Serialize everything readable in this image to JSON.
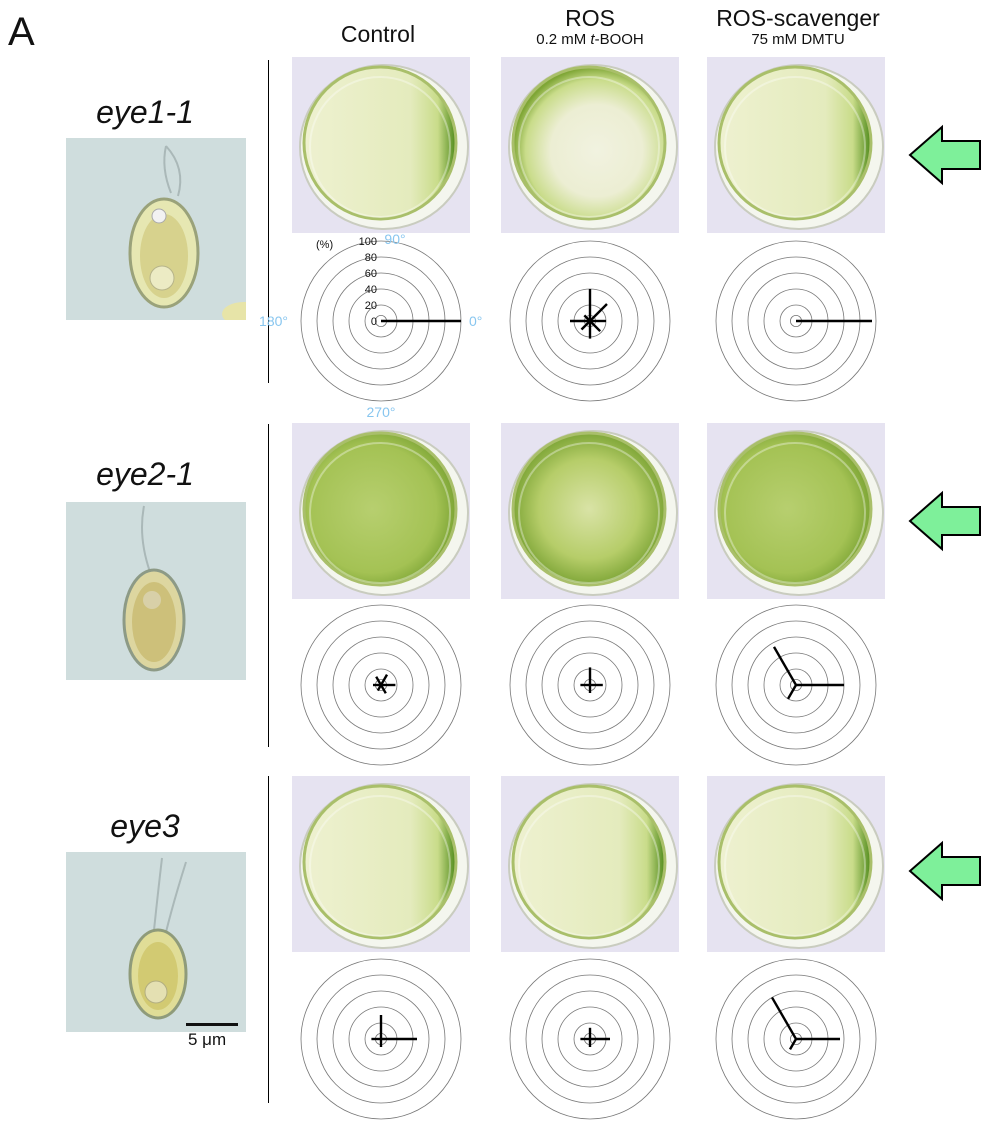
{
  "panel_label": "A",
  "columns": [
    {
      "title": "Control",
      "subtitle_pre": "",
      "subtitle_italic": "",
      "subtitle_post": ""
    },
    {
      "title": "ROS",
      "subtitle_pre": "0.2 mM ",
      "subtitle_italic": "t",
      "subtitle_post": "-BOOH"
    },
    {
      "title": "ROS-scavenger",
      "subtitle_pre": "75 mM DMTU",
      "subtitle_italic": "",
      "subtitle_post": ""
    }
  ],
  "strains": [
    {
      "name": "eye1-1",
      "dish_style": [
        "edge",
        "ring",
        "edge"
      ],
      "polar": [
        [
          100,
          0
        ],
        [
          20,
          30,
          40,
          10,
          25,
          15,
          22,
          18
        ],
        [
          95,
          0
        ]
      ]
    },
    {
      "name": "eye2-1",
      "dish_style": [
        "uniform",
        "patchy",
        "uniform"
      ],
      "polar": [
        [
          18,
          15,
          12,
          10,
          8,
          12
        ],
        [
          16,
          22,
          12,
          10
        ],
        [
          60,
          55,
          20
        ]
      ]
    },
    {
      "name": "eye3",
      "dish_style": [
        "edge",
        "edge",
        "edge"
      ],
      "polar": [
        [
          45,
          30,
          12,
          10
        ],
        [
          25,
          14,
          12,
          10
        ],
        [
          55,
          60,
          15
        ]
      ]
    }
  ],
  "polar_axis": {
    "unit_label": "(%)",
    "ticks": [
      "100",
      "80",
      "60",
      "40",
      "20",
      "0"
    ],
    "angle_labels": {
      "top": "90°",
      "left": "180°",
      "right": "0°",
      "bottom": "270°"
    }
  },
  "scale_bar_label": "5 μm",
  "colors": {
    "light_arrow": "#7ef09a",
    "algae_dark": "#4f8a1a",
    "algae_light": "#c9dc8a",
    "dish_bg": "#e6e3f1",
    "angle_label": "#88c6ef"
  }
}
